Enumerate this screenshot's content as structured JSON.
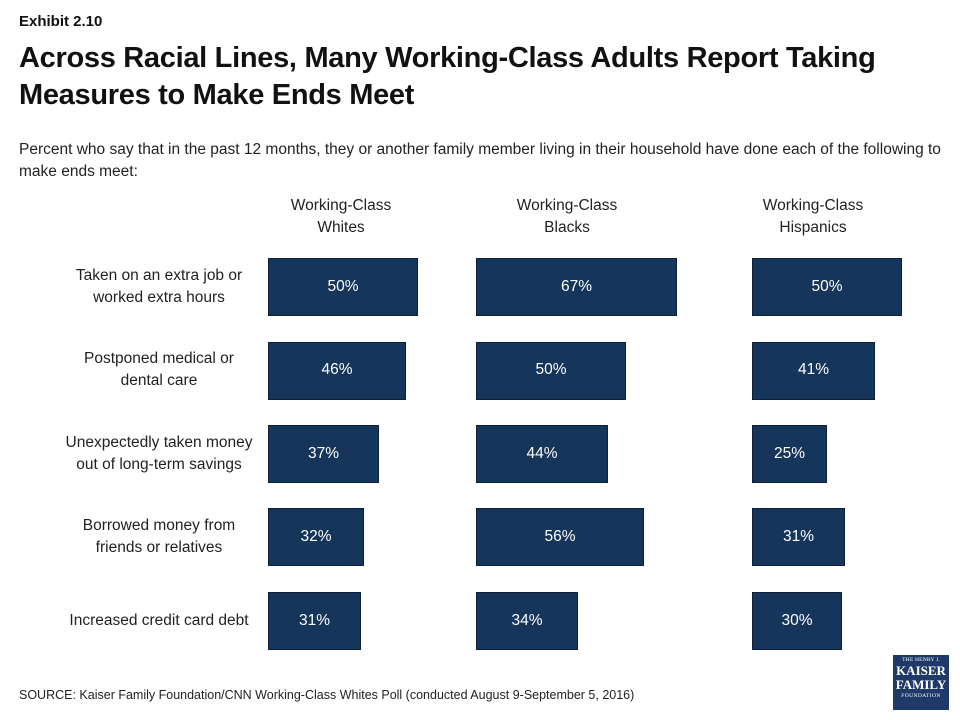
{
  "exhibit": "Exhibit 2.10",
  "title": "Across Racial Lines, Many Working-Class Adults Report Taking Measures to Make Ends Meet",
  "subtitle": "Percent who say that in the past 12 months, they or another family member living in their household have done each of the following to make ends meet:",
  "source": "SOURCE: Kaiser Family Foundation/CNN Working-Class Whites Poll (conducted August 9-September 5, 2016)",
  "logo": {
    "line1": "THE HENRY J.",
    "line2": "KAISER",
    "line3": "FAMILY",
    "line4": "FOUNDATION"
  },
  "colors": {
    "bar": "#15355a",
    "logo": "#1f3a68"
  },
  "chart_data": {
    "type": "bar",
    "orientation": "horizontal",
    "categories": [
      "Taken on an extra job or\nworked extra hours",
      "Postponed medical or\ndental care",
      "Unexpectedly taken money\nout of long-term savings",
      "Borrowed money from\nfriends or relatives",
      "Increased credit card debt"
    ],
    "series": [
      {
        "name": "Working-Class\nWhites",
        "values": [
          50,
          46,
          37,
          32,
          31
        ]
      },
      {
        "name": "Working-Class\nBlacks",
        "values": [
          67,
          50,
          44,
          56,
          34
        ]
      },
      {
        "name": "Working-Class\nHispanics",
        "values": [
          50,
          41,
          25,
          31,
          30
        ]
      }
    ],
    "value_suffix": "%",
    "xlim": [
      0,
      100
    ],
    "grid": false,
    "legend": "none"
  }
}
